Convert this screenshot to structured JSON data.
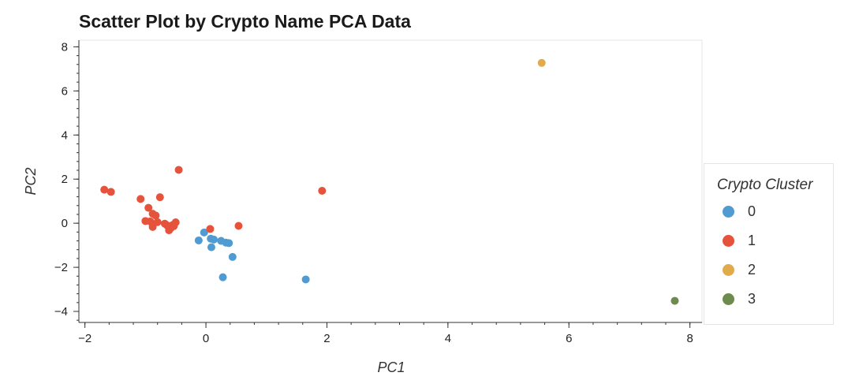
{
  "chart_data": {
    "type": "scatter",
    "title": "Scatter Plot by Crypto Name PCA Data",
    "xlabel": "PC1",
    "ylabel": "PC2",
    "xlim": [
      -2.1,
      8.2
    ],
    "ylim": [
      -4.5,
      8.3
    ],
    "xticks": [
      -2,
      0,
      2,
      4,
      6,
      8
    ],
    "yticks": [
      -4,
      -2,
      0,
      2,
      4,
      6,
      8
    ],
    "grid": false,
    "legend": {
      "title": "Crypto Cluster",
      "placement": "right"
    },
    "series": [
      {
        "name": "0",
        "color": "#4f9bd2",
        "points": [
          [
            -0.12,
            -0.78
          ],
          [
            -0.03,
            -0.42
          ],
          [
            0.08,
            -0.7
          ],
          [
            0.13,
            -0.74
          ],
          [
            0.09,
            -1.09
          ],
          [
            0.25,
            -0.8
          ],
          [
            0.33,
            -0.88
          ],
          [
            0.38,
            -0.9
          ],
          [
            0.44,
            -1.53
          ],
          [
            0.28,
            -2.45
          ],
          [
            1.65,
            -2.55
          ]
        ]
      },
      {
        "name": "1",
        "color": "#e5533c",
        "points": [
          [
            -1.68,
            1.52
          ],
          [
            -1.57,
            1.42
          ],
          [
            -1.08,
            1.1
          ],
          [
            -0.76,
            1.18
          ],
          [
            -0.45,
            2.42
          ],
          [
            -0.95,
            0.7
          ],
          [
            -0.88,
            0.43
          ],
          [
            -0.83,
            0.35
          ],
          [
            -1.0,
            0.1
          ],
          [
            -0.92,
            0.08
          ],
          [
            -0.8,
            0.05
          ],
          [
            -0.88,
            -0.17
          ],
          [
            -0.68,
            -0.02
          ],
          [
            -0.64,
            -0.1
          ],
          [
            -0.58,
            -0.22
          ],
          [
            -0.61,
            -0.32
          ],
          [
            -0.55,
            -0.08
          ],
          [
            -0.5,
            0.04
          ],
          [
            -0.53,
            -0.13
          ],
          [
            0.07,
            -0.26
          ],
          [
            0.54,
            -0.12
          ],
          [
            1.92,
            1.47
          ]
        ]
      },
      {
        "name": "2",
        "color": "#e1ab4b",
        "points": [
          [
            5.55,
            7.27
          ]
        ]
      },
      {
        "name": "3",
        "color": "#6d8b4d",
        "points": [
          [
            7.75,
            -3.52
          ]
        ]
      }
    ]
  }
}
